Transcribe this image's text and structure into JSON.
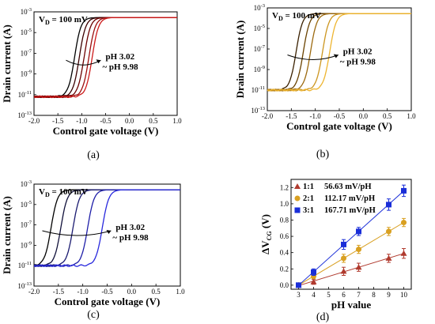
{
  "chart_data": [
    {
      "id": "a",
      "type": "line",
      "panel_label": "(a)",
      "xlabel": "Control gate voltage (V)",
      "ylabel": "Drain current (A)",
      "xlim": [
        -2.0,
        1.0
      ],
      "ylim_log10": [
        -13,
        -3
      ],
      "x_ticks": [
        "-2.0",
        "-1.5",
        "-1.0",
        "-0.5",
        "0.0",
        "0.5",
        "1.0"
      ],
      "y_tick_exponents": [
        "-3",
        "-5",
        "-7",
        "-9",
        "-11",
        "-13"
      ],
      "y_scale": "log",
      "annotation_vd": "V",
      "annotation_vd_sub": "D",
      "annotation_vd_value": " = 100 mV",
      "annotation_ph_line1": "pH 3.02",
      "annotation_ph_line2": "~ pH 9.98",
      "floor_log10": -11.2,
      "series": [
        {
          "color": "#000000",
          "vth": -1.15
        },
        {
          "color": "#3a0000",
          "vth": -1.05
        },
        {
          "color": "#6b0000",
          "vth": -0.95
        },
        {
          "color": "#9c0e0e",
          "vth": -0.85
        },
        {
          "color": "#cc1a1a",
          "vth": -0.78
        }
      ]
    },
    {
      "id": "b",
      "type": "line",
      "panel_label": "(b)",
      "xlabel": "Control gate voltage (V)",
      "ylabel": "Drain current (A)",
      "xlim": [
        -2.0,
        1.0
      ],
      "ylim_log10": [
        -13,
        -3
      ],
      "x_ticks": [
        "-2.0",
        "-1.5",
        "-1.0",
        "-0.5",
        "0.0",
        "0.5",
        "1.0"
      ],
      "y_tick_exponents": [
        "-3",
        "-5",
        "-7",
        "-9",
        "-11",
        "-13"
      ],
      "y_scale": "log",
      "annotation_vd": "V",
      "annotation_vd_sub": "D",
      "annotation_vd_value": " = 100 mV",
      "annotation_ph_line1": "pH 3.02",
      "annotation_ph_line2": "~ pH 9.98",
      "floor_log10": -11.0,
      "series": [
        {
          "color": "#3a2000",
          "vth": -1.4
        },
        {
          "color": "#6a4200",
          "vth": -1.25
        },
        {
          "color": "#9c6a10",
          "vth": -1.1
        },
        {
          "color": "#cc9620",
          "vth": -0.85
        },
        {
          "color": "#eeb530",
          "vth": -0.7
        }
      ]
    },
    {
      "id": "c",
      "type": "line",
      "panel_label": "(c)",
      "xlabel": "Control gate voltage (V)",
      "ylabel": "Drain current (A)",
      "xlim": [
        -2.0,
        1.0
      ],
      "ylim_log10": [
        -13,
        -3
      ],
      "x_ticks": [
        "-2.0",
        "-1.5",
        "-1.0",
        "-0.5",
        "0.0",
        "0.5",
        "1.0"
      ],
      "y_tick_exponents": [
        "-3",
        "-5",
        "-7",
        "-9",
        "-11",
        "-13"
      ],
      "y_scale": "log",
      "annotation_vd": "V",
      "annotation_vd_sub": "D",
      "annotation_vd_value": " = 100 mV",
      "annotation_ph_line1": "pH 3.02",
      "annotation_ph_line2": "~ pH 9.98",
      "floor_log10": -11.0,
      "series": [
        {
          "color": "#000000",
          "vth": -1.65
        },
        {
          "color": "#10103a",
          "vth": -1.45
        },
        {
          "color": "#1a1a70",
          "vth": -1.2
        },
        {
          "color": "#1e1ea8",
          "vth": -0.9
        },
        {
          "color": "#2828dd",
          "vth": -0.6
        }
      ]
    },
    {
      "id": "d",
      "type": "scatter",
      "panel_label": "(d)",
      "xlabel": "pH value",
      "ylabel": "ΔV",
      "ylabel_sub": "CG",
      "ylabel_unit": " (V)",
      "xlim": [
        2.5,
        10.5
      ],
      "ylim": [
        -0.05,
        1.3
      ],
      "x_ticks": [
        "3",
        "4",
        "5",
        "6",
        "7",
        "8",
        "9",
        "10"
      ],
      "y_ticks": [
        "0.0",
        "0.2",
        "0.4",
        "0.6",
        "0.8",
        "1.0",
        "1.2"
      ],
      "x": [
        3,
        4,
        6,
        7,
        9,
        10
      ],
      "series": [
        {
          "name": "1:1",
          "label": "56.63 mV/pH",
          "marker": "triangle",
          "color": "#b03a2e",
          "values": [
            0.0,
            0.04,
            0.17,
            0.22,
            0.33,
            0.39
          ],
          "err": [
            0.01,
            0.03,
            0.05,
            0.05,
            0.05,
            0.06
          ]
        },
        {
          "name": "2:1",
          "label": "112.17 mV/pH",
          "marker": "circle",
          "color": "#d9a021",
          "values": [
            0.0,
            0.11,
            0.33,
            0.44,
            0.66,
            0.77
          ],
          "err": [
            0.01,
            0.03,
            0.05,
            0.05,
            0.05,
            0.05
          ]
        },
        {
          "name": "3:1",
          "label": "167.71 mV/pH",
          "marker": "square",
          "color": "#1a2ed8",
          "values": [
            0.0,
            0.16,
            0.5,
            0.66,
            0.99,
            1.16
          ],
          "err": [
            0.01,
            0.04,
            0.06,
            0.05,
            0.07,
            0.07
          ]
        }
      ]
    }
  ]
}
